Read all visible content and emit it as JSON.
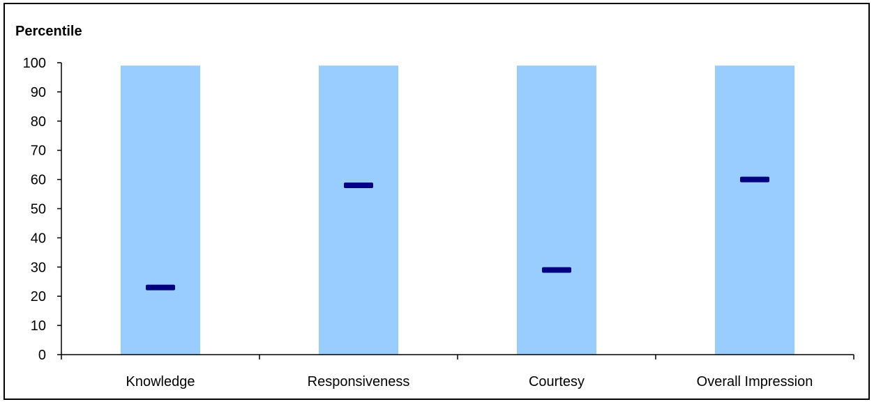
{
  "chart_data": {
    "type": "bar",
    "title": "",
    "xlabel": "",
    "ylabel": "Percentile",
    "ylim": [
      0,
      100
    ],
    "yticks": [
      0,
      10,
      20,
      30,
      40,
      50,
      60,
      70,
      80,
      90,
      100
    ],
    "grid": false,
    "categories": [
      "Knowledge",
      "Responsiveness",
      "Courtesy",
      "Overall Impression"
    ],
    "series": [
      {
        "values": [
          99,
          99,
          99,
          99
        ]
      },
      {
        "values": [
          23,
          58,
          29,
          60
        ]
      }
    ],
    "colors": {
      "bar": "#99ccff",
      "marker": "#000080",
      "axis": "#000000"
    }
  }
}
